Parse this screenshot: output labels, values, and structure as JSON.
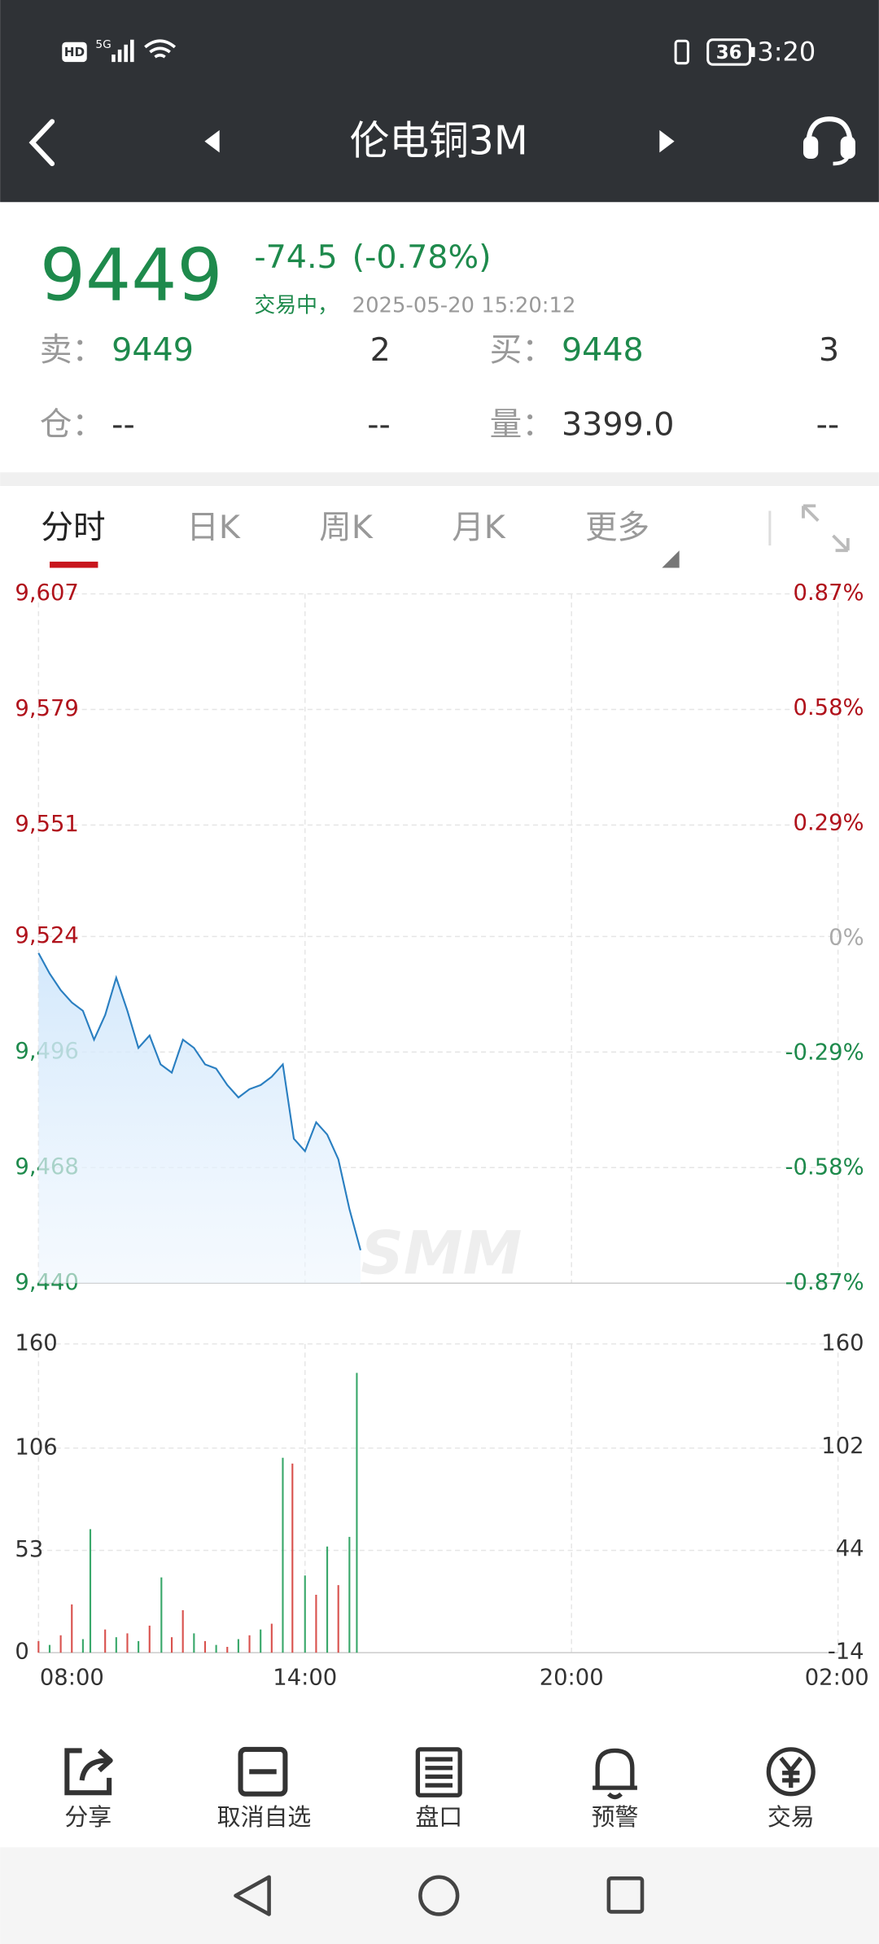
{
  "status_bar": {
    "hd": "HD",
    "network": "5G",
    "battery": "36",
    "time": "3:20"
  },
  "nav": {
    "title": "伦电铜3M"
  },
  "quote": {
    "price": "9449",
    "change": "-74.5",
    "change_pct": "(-0.78%)",
    "status": "交易中，",
    "timestamp": "2025-05-20 15:20:12",
    "fields": [
      {
        "label": "卖：",
        "value": "9449",
        "qty": "2"
      },
      {
        "label": "买：",
        "value": "9448",
        "qty": "3"
      },
      {
        "label": "仓：",
        "value": "--",
        "qty": "--"
      },
      {
        "label": "量：",
        "value": "3399.0",
        "qty": "--"
      }
    ]
  },
  "tabs": [
    "分时",
    "日K",
    "周K",
    "月K",
    "更多"
  ],
  "watermark": "SMM",
  "chart_data": [
    {
      "type": "line",
      "color": "#2a7fc1",
      "x": [
        "08:00",
        "08:15",
        "08:30",
        "08:45",
        "09:00",
        "09:15",
        "09:30",
        "09:45",
        "10:00",
        "10:15",
        "10:30",
        "10:45",
        "11:00",
        "11:15",
        "11:30",
        "11:45",
        "12:00",
        "12:15",
        "12:30",
        "12:45",
        "13:00",
        "13:15",
        "13:30",
        "13:45",
        "14:00",
        "14:15",
        "14:30",
        "14:45",
        "15:00",
        "15:15"
      ],
      "values": [
        9520,
        9515,
        9511,
        9508,
        9506,
        9499,
        9505,
        9514,
        9506,
        9497,
        9500,
        9493,
        9491,
        9499,
        9497,
        9493,
        9492,
        9488,
        9485,
        9487,
        9488,
        9490,
        9493,
        9475,
        9472,
        9479,
        9476,
        9470,
        9458,
        9448
      ],
      "ylim": [
        9440,
        9607
      ],
      "yticks": [
        {
          "value": 9440,
          "label": "9,440"
        },
        {
          "value": 9468,
          "label": "9,468"
        },
        {
          "value": 9496,
          "label": "9,496"
        },
        {
          "value": 9524,
          "label": "9,524"
        },
        {
          "value": 9551,
          "label": "9,551"
        },
        {
          "value": 9579,
          "label": "9,579"
        },
        {
          "value": 9607,
          "label": "9,607"
        }
      ],
      "y2lim": [
        -0.87,
        0.87
      ],
      "y2ticks": [
        {
          "value": -0.87,
          "label": "-0.87%"
        },
        {
          "value": -0.58,
          "label": "-0.58%"
        },
        {
          "value": -0.29,
          "label": "-0.29%"
        },
        {
          "value": 0,
          "label": "0%"
        },
        {
          "value": 0.29,
          "label": "0.29%"
        },
        {
          "value": 0.58,
          "label": "0.58%"
        },
        {
          "value": 0.87,
          "label": "0.87%"
        }
      ],
      "grid": true
    },
    {
      "type": "bar",
      "x": [
        "08:00",
        "08:15",
        "08:30",
        "08:45",
        "09:00",
        "09:10",
        "09:30",
        "09:45",
        "10:00",
        "10:15",
        "10:30",
        "10:46",
        "11:00",
        "11:15",
        "11:30",
        "11:45",
        "12:00",
        "12:15",
        "12:30",
        "12:45",
        "13:00",
        "13:15",
        "13:30",
        "13:43",
        "14:00",
        "14:15",
        "14:30",
        "14:45",
        "15:00",
        "15:10"
      ],
      "values": [
        6,
        4,
        9,
        25,
        7,
        64,
        12,
        8,
        10,
        6,
        14,
        39,
        8,
        22,
        10,
        6,
        4,
        3,
        7,
        9,
        12,
        15,
        101,
        98,
        40,
        30,
        55,
        35,
        60,
        145
      ],
      "colors": [
        "#d9534f",
        "#3aa86b",
        "#d9534f",
        "#d9534f",
        "#3aa86b",
        "#3aa86b",
        "#d9534f",
        "#3aa86b",
        "#d9534f",
        "#3aa86b",
        "#d9534f",
        "#3aa86b",
        "#d9534f",
        "#d9534f",
        "#3aa86b",
        "#d9534f",
        "#3aa86b",
        "#d9534f",
        "#3aa86b",
        "#d9534f",
        "#3aa86b",
        "#d9534f",
        "#3aa86b",
        "#d9534f",
        "#3aa86b",
        "#d9534f",
        "#3aa86b",
        "#d9534f",
        "#3aa86b",
        "#3aa86b"
      ],
      "ylim": [
        0,
        160
      ],
      "yticks": [
        0,
        53,
        106,
        160
      ],
      "y2lim": [
        -14,
        160
      ],
      "y2ticks": [
        -14,
        44,
        102,
        160
      ],
      "xticks": [
        "08:00",
        "14:00",
        "20:00",
        "02:00"
      ],
      "grid": true
    }
  ],
  "toolbar": [
    "分享",
    "取消自选",
    "盘口",
    "预警",
    "交易"
  ]
}
